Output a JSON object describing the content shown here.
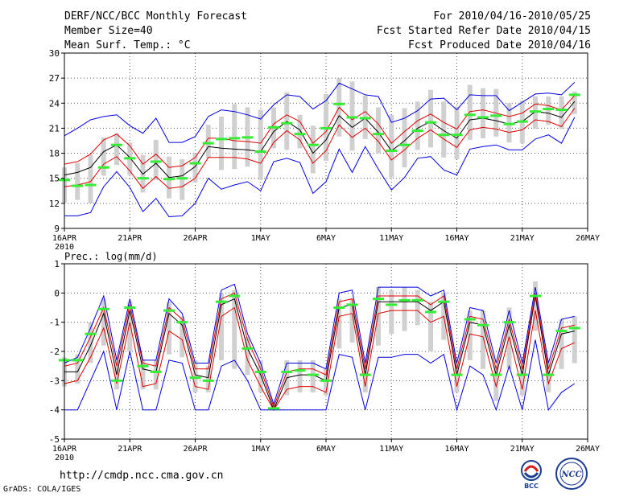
{
  "header": {
    "title": "DERF/NCC/BCC Monthly Forecast",
    "member_size": "Member Size=40",
    "variable": "Mean Surf. Temp.: °C",
    "period": "For 2010/04/16-2010/05/25",
    "fcst_started": "Fcst Started Refer Date 2010/04/15",
    "fcst_produced": "Fcst Produced Date 2010/04/16"
  },
  "footer": {
    "url": "http://cmdp.ncc.cma.gov.cn",
    "credit": "GrADS: COLA/IGES",
    "logo_bcc_label": "BCC",
    "logo_ncc_label": "NCC"
  },
  "colors": {
    "mean": "#000000",
    "spread": "#e00000",
    "extreme": "#0000e0",
    "obs": "#33ee33",
    "box": "#d0d0d0",
    "grid": "#555555"
  },
  "chart_data": [
    {
      "type": "line",
      "title": "Mean Surf. Temp.: °C",
      "xlabel": "",
      "ylabel": "",
      "x": [
        1,
        2,
        3,
        4,
        5,
        6,
        7,
        8,
        9,
        10,
        11,
        12,
        13,
        14,
        15,
        16,
        17,
        18,
        19,
        20,
        21,
        22,
        23,
        24,
        25,
        26,
        27,
        28,
        29,
        30,
        31,
        32,
        33,
        34,
        35,
        36,
        37,
        38,
        39,
        40
      ],
      "x_ticks": [
        1,
        6,
        11,
        16,
        21,
        26,
        31,
        36,
        41
      ],
      "x_tick_labels": [
        "16APR",
        "21APR",
        "26APR",
        "1MAY",
        "6MAY",
        "11MAY",
        "16MAY",
        "21MAY",
        "26MAY"
      ],
      "x_year_label": "2010",
      "xlim": [
        1,
        41
      ],
      "ylim": [
        9,
        30
      ],
      "y_ticks": [
        9,
        12,
        15,
        18,
        21,
        24,
        27,
        30
      ],
      "series": [
        {
          "name": "ensemble mean",
          "values": [
            15.4,
            15.7,
            16.3,
            18.2,
            19.0,
            17.5,
            15.5,
            16.8,
            15.1,
            15.3,
            16.4,
            18.8,
            18.6,
            18.5,
            18.4,
            18.2,
            20.6,
            21.8,
            20.8,
            18.0,
            19.6,
            22.5,
            21.1,
            22.2,
            20.5,
            18.3,
            19.5,
            21.0,
            21.8,
            20.7,
            19.8,
            22.0,
            22.2,
            21.9,
            21.5,
            21.8,
            23.0,
            22.8,
            22.3,
            24.2
          ]
        },
        {
          "name": "spread upper",
          "values": [
            16.7,
            17.0,
            17.9,
            19.6,
            20.3,
            18.9,
            16.7,
            17.9,
            16.3,
            16.5,
            17.5,
            19.8,
            19.8,
            19.5,
            19.4,
            19.2,
            21.5,
            22.6,
            21.8,
            19.2,
            20.6,
            23.5,
            22.0,
            23.0,
            21.5,
            19.2,
            20.6,
            21.9,
            22.7,
            21.7,
            20.9,
            23.0,
            23.2,
            22.8,
            22.4,
            22.8,
            23.9,
            23.7,
            23.2,
            24.9
          ]
        },
        {
          "name": "spread lower",
          "values": [
            14.0,
            14.2,
            14.6,
            16.7,
            17.6,
            15.9,
            13.8,
            15.2,
            13.8,
            14.0,
            15.0,
            17.5,
            17.5,
            17.5,
            17.3,
            16.8,
            19.3,
            20.7,
            19.6,
            16.8,
            18.3,
            21.4,
            19.9,
            21.0,
            19.4,
            17.2,
            18.4,
            19.8,
            20.8,
            19.7,
            18.7,
            20.8,
            21.1,
            20.9,
            20.5,
            20.8,
            22.0,
            21.8,
            21.2,
            23.4
          ]
        },
        {
          "name": "ensemble max",
          "values": [
            20.1,
            21.0,
            22.0,
            22.4,
            22.6,
            21.3,
            20.4,
            22.2,
            19.3,
            19.3,
            20.0,
            22.4,
            23.2,
            23.0,
            22.6,
            22.1,
            23.8,
            25.0,
            24.8,
            23.3,
            24.3,
            26.4,
            25.7,
            25.0,
            24.8,
            21.7,
            22.2,
            23.1,
            24.5,
            24.6,
            23.2,
            25.0,
            24.9,
            24.9,
            23.1,
            24.1,
            25.1,
            25.2,
            25.0,
            26.5
          ]
        },
        {
          "name": "ensemble min",
          "values": [
            10.5,
            10.5,
            10.9,
            14.0,
            15.8,
            13.9,
            11.0,
            12.6,
            10.4,
            10.5,
            12.0,
            15.0,
            13.7,
            14.2,
            14.6,
            13.5,
            17.0,
            17.4,
            16.9,
            13.2,
            14.6,
            18.5,
            15.7,
            18.8,
            16.1,
            13.6,
            15.1,
            17.4,
            17.6,
            16.0,
            15.4,
            18.5,
            18.8,
            19.0,
            18.4,
            18.4,
            19.7,
            20.2,
            19.2,
            22.3
          ]
        },
        {
          "name": "observation / box center",
          "values": [
            14.8,
            14.1,
            14.2,
            16.3,
            19.0,
            17.4,
            15.0,
            17.0,
            14.9,
            15.0,
            16.8,
            19.2,
            19.7,
            19.8,
            19.9,
            18.2,
            21.1,
            21.6,
            20.3,
            19.0,
            21.0,
            23.9,
            22.3,
            22.2,
            20.3,
            18.3,
            19.0,
            20.7,
            21.7,
            20.2,
            20.2,
            22.6,
            22.3,
            22.5,
            21.5,
            21.8,
            23.0,
            23.3,
            23.2,
            25.0
          ]
        }
      ],
      "boxes": [
        {
          "lo": 12.1,
          "hi": 16.3
        },
        {
          "lo": 12.4,
          "hi": 16.8
        },
        {
          "lo": 12.0,
          "hi": 17.8
        },
        {
          "lo": 15.3,
          "hi": 19.9
        },
        {
          "lo": 16.6,
          "hi": 20.4
        },
        {
          "lo": 15.4,
          "hi": 19.3
        },
        {
          "lo": 13.3,
          "hi": 17.8
        },
        {
          "lo": 14.8,
          "hi": 19.6
        },
        {
          "lo": 12.6,
          "hi": 17.6
        },
        {
          "lo": 12.4,
          "hi": 17.3
        },
        {
          "lo": 14.5,
          "hi": 18.0
        },
        {
          "lo": 17.4,
          "hi": 21.4
        },
        {
          "lo": 16.0,
          "hi": 22.4
        },
        {
          "lo": 16.1,
          "hi": 23.9
        },
        {
          "lo": 16.4,
          "hi": 23.5
        },
        {
          "lo": 14.8,
          "hi": 23.2
        },
        {
          "lo": 18.6,
          "hi": 23.5
        },
        {
          "lo": 18.4,
          "hi": 25.3
        },
        {
          "lo": 18.6,
          "hi": 22.6
        },
        {
          "lo": 15.6,
          "hi": 21.3
        },
        {
          "lo": 17.1,
          "hi": 25.1
        },
        {
          "lo": 20.0,
          "hi": 27.0
        },
        {
          "lo": 18.3,
          "hi": 26.6
        },
        {
          "lo": 19.7,
          "hi": 24.9
        },
        {
          "lo": 18.0,
          "hi": 23.5
        },
        {
          "lo": 15.1,
          "hi": 22.6
        },
        {
          "lo": 16.3,
          "hi": 23.4
        },
        {
          "lo": 18.4,
          "hi": 24.2
        },
        {
          "lo": 18.7,
          "hi": 25.6
        },
        {
          "lo": 17.5,
          "hi": 24.2
        },
        {
          "lo": 17.3,
          "hi": 23.6
        },
        {
          "lo": 19.6,
          "hi": 26.2
        },
        {
          "lo": 19.8,
          "hi": 25.8
        },
        {
          "lo": 20.0,
          "hi": 25.7
        },
        {
          "lo": 19.3,
          "hi": 24.0
        },
        {
          "lo": 19.2,
          "hi": 24.3
        },
        {
          "lo": 20.9,
          "hi": 24.8
        },
        {
          "lo": 21.4,
          "hi": 24.8
        },
        {
          "lo": 20.9,
          "hi": 24.8
        },
        {
          "lo": 22.7,
          "hi": 25.4
        }
      ],
      "obs_markers": [
        14.8,
        14.1,
        14.2,
        16.3,
        19.0,
        17.4,
        15.0,
        17.0,
        14.9,
        15.0,
        16.8,
        19.2,
        19.7,
        19.8,
        19.9,
        18.2,
        21.1,
        21.6,
        20.3,
        19.0,
        21.0,
        23.9,
        22.3,
        22.2,
        20.3,
        18.3,
        19.0,
        20.7,
        21.7,
        20.2,
        20.2,
        22.6,
        22.3,
        22.5,
        21.5,
        21.8,
        23.0,
        23.3,
        23.2,
        25.0
      ]
    },
    {
      "type": "line",
      "title": "Prec.: log(mm/d)",
      "xlabel": "",
      "ylabel": "",
      "x": [
        1,
        2,
        3,
        4,
        5,
        6,
        7,
        8,
        9,
        10,
        11,
        12,
        13,
        14,
        15,
        16,
        17,
        18,
        19,
        20,
        21,
        22,
        23,
        24,
        25,
        26,
        27,
        28,
        29,
        30,
        31,
        32,
        33,
        34,
        35,
        36,
        37,
        38,
        39,
        40
      ],
      "x_ticks": [
        1,
        6,
        11,
        16,
        21,
        26,
        31,
        36,
        41
      ],
      "x_tick_labels": [
        "16APR",
        "21APR",
        "26APR",
        "1MAY",
        "6MAY",
        "11MAY",
        "16MAY",
        "21MAY",
        "26MAY"
      ],
      "x_year_label": "2010",
      "xlim": [
        1,
        41
      ],
      "ylim": [
        -5,
        1
      ],
      "y_ticks": [
        -5,
        -4,
        -3,
        -2,
        -1,
        0,
        1
      ],
      "series": [
        {
          "name": "ensemble mean",
          "values": [
            -2.7,
            -2.7,
            -1.8,
            -0.7,
            -2.8,
            -0.6,
            -2.6,
            -2.7,
            -0.7,
            -1.1,
            -2.8,
            -2.9,
            -0.4,
            -0.2,
            -1.9,
            -2.8,
            -4.0,
            -2.9,
            -2.8,
            -2.8,
            -3.0,
            -0.5,
            -0.4,
            -2.8,
            -0.3,
            -0.3,
            -0.3,
            -0.3,
            -0.6,
            -0.3,
            -2.8,
            -1.0,
            -1.1,
            -2.8,
            -1.1,
            -2.8,
            -0.1,
            -2.8,
            -1.4,
            -1.3
          ]
        },
        {
          "name": "spread upper",
          "values": [
            -2.5,
            -2.4,
            -1.5,
            -0.5,
            -2.5,
            -0.4,
            -2.4,
            -2.5,
            -0.5,
            -0.9,
            -2.6,
            -2.6,
            -0.2,
            0.0,
            -1.6,
            -2.6,
            -3.9,
            -2.7,
            -2.6,
            -2.6,
            -2.8,
            -0.3,
            -0.2,
            -2.6,
            -0.1,
            -0.1,
            -0.1,
            -0.1,
            -0.4,
            -0.1,
            -2.6,
            -0.8,
            -0.9,
            -2.6,
            -0.9,
            -2.6,
            0.0,
            -2.6,
            -1.2,
            -1.1
          ]
        },
        {
          "name": "spread lower",
          "values": [
            -3.1,
            -3.0,
            -2.2,
            -1.2,
            -3.1,
            -1.0,
            -3.2,
            -3.1,
            -1.3,
            -1.6,
            -3.2,
            -3.3,
            -0.8,
            -0.5,
            -2.3,
            -3.2,
            -4.0,
            -3.3,
            -3.2,
            -3.2,
            -3.4,
            -0.8,
            -0.7,
            -3.2,
            -0.7,
            -0.6,
            -0.6,
            -0.6,
            -1.0,
            -0.8,
            -3.2,
            -1.4,
            -1.5,
            -3.2,
            -1.5,
            -3.3,
            -0.6,
            -3.1,
            -1.9,
            -1.7
          ]
        },
        {
          "name": "ensemble max",
          "values": [
            -2.4,
            -2.2,
            -1.2,
            -0.1,
            -2.3,
            -0.2,
            -2.3,
            -2.3,
            -0.2,
            -0.7,
            -2.4,
            -2.4,
            0.1,
            0.3,
            -1.4,
            -2.4,
            -3.8,
            -2.4,
            -2.4,
            -2.4,
            -2.6,
            0.0,
            0.1,
            -2.4,
            0.2,
            0.2,
            0.2,
            0.2,
            -0.1,
            0.1,
            -2.4,
            -0.5,
            -0.6,
            -2.4,
            -0.6,
            -2.4,
            0.2,
            -2.4,
            -0.9,
            -0.8
          ]
        },
        {
          "name": "ensemble min",
          "values": [
            -4.0,
            -4.0,
            -3.0,
            -2.0,
            -4.0,
            -2.0,
            -4.0,
            -4.0,
            -2.3,
            -2.4,
            -4.0,
            -4.0,
            -2.5,
            -2.3,
            -3.0,
            -4.0,
            -4.0,
            -4.0,
            -4.0,
            -4.0,
            -4.0,
            -2.1,
            -2.2,
            -4.0,
            -2.2,
            -2.2,
            -2.1,
            -2.1,
            -2.4,
            -2.1,
            -4.0,
            -2.5,
            -2.8,
            -4.0,
            -2.5,
            -4.0,
            -1.6,
            -4.0,
            -3.4,
            -3.1
          ]
        },
        {
          "name": "observation",
          "values": [
            -2.3,
            -2.3,
            -1.4,
            -0.55,
            -3.0,
            -0.5,
            -2.5,
            -2.7,
            -0.6,
            -1.0,
            -2.9,
            -3.0,
            -0.3,
            -0.1,
            -1.9,
            -2.7,
            -3.95,
            -2.7,
            -2.65,
            -2.8,
            -3.0,
            -0.5,
            -0.4,
            -2.8,
            -0.2,
            -0.4,
            -0.25,
            -0.25,
            -0.65,
            -0.3,
            -2.8,
            -0.9,
            -1.1,
            -2.8,
            -1.0,
            -2.8,
            -0.1,
            -2.8,
            -1.3,
            -1.2
          ]
        }
      ],
      "boxes": [
        {
          "lo": -3.2,
          "hi": -2.2
        },
        {
          "lo": -3.1,
          "hi": -2.1
        },
        {
          "lo": -2.4,
          "hi": -1.0
        },
        {
          "lo": -1.8,
          "hi": -0.2
        },
        {
          "lo": -3.3,
          "hi": -2.3
        },
        {
          "lo": -2.0,
          "hi": -0.3
        },
        {
          "lo": -3.3,
          "hi": -2.3
        },
        {
          "lo": -3.3,
          "hi": -2.3
        },
        {
          "lo": -2.1,
          "hi": -0.3
        },
        {
          "lo": -2.2,
          "hi": -0.8
        },
        {
          "lo": -3.4,
          "hi": -2.3
        },
        {
          "lo": -3.4,
          "hi": -2.5
        },
        {
          "lo": -2.3,
          "hi": 0.0
        },
        {
          "lo": -2.6,
          "hi": 0.1
        },
        {
          "lo": -2.8,
          "hi": -1.5
        },
        {
          "lo": -3.4,
          "hi": -2.3
        },
        {
          "lo": -4.0,
          "hi": -3.8
        },
        {
          "lo": -3.5,
          "hi": -2.3
        },
        {
          "lo": -3.4,
          "hi": -2.3
        },
        {
          "lo": -3.4,
          "hi": -2.3
        },
        {
          "lo": -3.5,
          "hi": -2.6
        },
        {
          "lo": -1.9,
          "hi": -0.2
        },
        {
          "lo": -1.7,
          "hi": -0.2
        },
        {
          "lo": -3.4,
          "hi": -2.4
        },
        {
          "lo": -1.8,
          "hi": 0.2
        },
        {
          "lo": -1.4,
          "hi": 0.1
        },
        {
          "lo": -1.3,
          "hi": 0.2
        },
        {
          "lo": -1.1,
          "hi": 0.1
        },
        {
          "lo": -2.0,
          "hi": -0.3
        },
        {
          "lo": -1.6,
          "hi": 0.0
        },
        {
          "lo": -3.4,
          "hi": -2.4
        },
        {
          "lo": -2.3,
          "hi": -0.6
        },
        {
          "lo": -2.6,
          "hi": -0.6
        },
        {
          "lo": -3.7,
          "hi": -2.5
        },
        {
          "lo": -2.6,
          "hi": -0.5
        },
        {
          "lo": -3.5,
          "hi": -2.5
        },
        {
          "lo": -1.3,
          "hi": 0.4
        },
        {
          "lo": -3.4,
          "hi": -2.4
        },
        {
          "lo": -2.6,
          "hi": -0.9
        },
        {
          "lo": -2.4,
          "hi": -0.8
        }
      ],
      "obs_markers": [
        -2.3,
        -2.3,
        -1.4,
        -0.55,
        -3.0,
        -0.5,
        -2.5,
        -2.7,
        -0.6,
        -1.0,
        -2.9,
        -3.0,
        -0.3,
        -0.1,
        -1.9,
        -2.7,
        -3.95,
        -2.7,
        -2.65,
        -2.8,
        -3.0,
        -0.5,
        -0.4,
        -2.8,
        -0.2,
        -0.4,
        -0.25,
        -0.25,
        -0.65,
        -0.3,
        -2.8,
        -0.9,
        -1.1,
        -2.8,
        -1.0,
        -2.8,
        -0.1,
        -2.8,
        -1.3,
        -1.2
      ]
    }
  ]
}
